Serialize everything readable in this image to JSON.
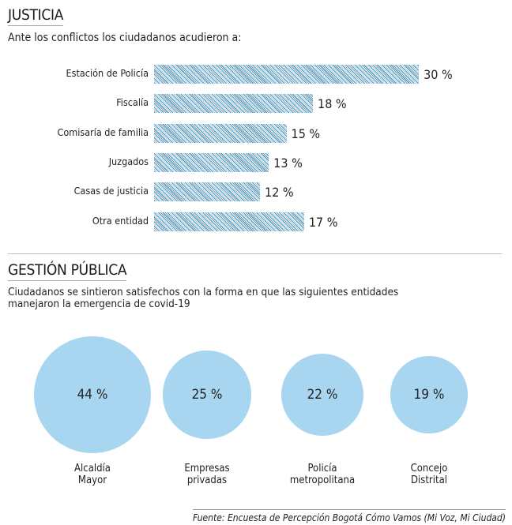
{
  "justicia": {
    "title": "JUSTICIA",
    "subtitle": "Ante los conflictos los ciudadanos acudieron a:"
  },
  "gestion": {
    "title": "GESTIÓN PÚBLICA",
    "subtitle_line1": "Ciudadanos se sintieron satisfechos con la forma en que las siguientes entidades",
    "subtitle_line2": "manejaron la emergencia de covid-19"
  },
  "source": "Fuente: Encuesta de Percepción Bogotá Cómo Vamos (Mi Voz, Mi Ciudad)",
  "colors": {
    "bar": "#5aa9d6",
    "circle": "#a8d5f0"
  },
  "chart_data": [
    {
      "type": "bar",
      "orientation": "horizontal",
      "title": "JUSTICIA",
      "categories": [
        "Estación de Policía",
        "Fiscalía",
        "Comisaría de familia",
        "Juzgados",
        "Casas de justicia",
        "Otra entidad"
      ],
      "values": [
        30,
        18,
        15,
        13,
        12,
        17
      ],
      "labels": [
        "30 %",
        "18 %",
        "15 %",
        "13 %",
        "12 %",
        "17 %"
      ],
      "unit": "%"
    },
    {
      "type": "bubble",
      "title": "GESTIÓN PÚBLICA",
      "categories": [
        [
          "Alcaldía",
          "Mayor"
        ],
        [
          "Empresas",
          "privadas"
        ],
        [
          "Policía",
          "metropolitana"
        ],
        [
          "Concejo",
          "Distrital"
        ]
      ],
      "values": [
        44,
        25,
        22,
        19
      ],
      "labels": [
        "44 %",
        "25 %",
        "22 %",
        "19 %"
      ],
      "unit": "%"
    }
  ]
}
